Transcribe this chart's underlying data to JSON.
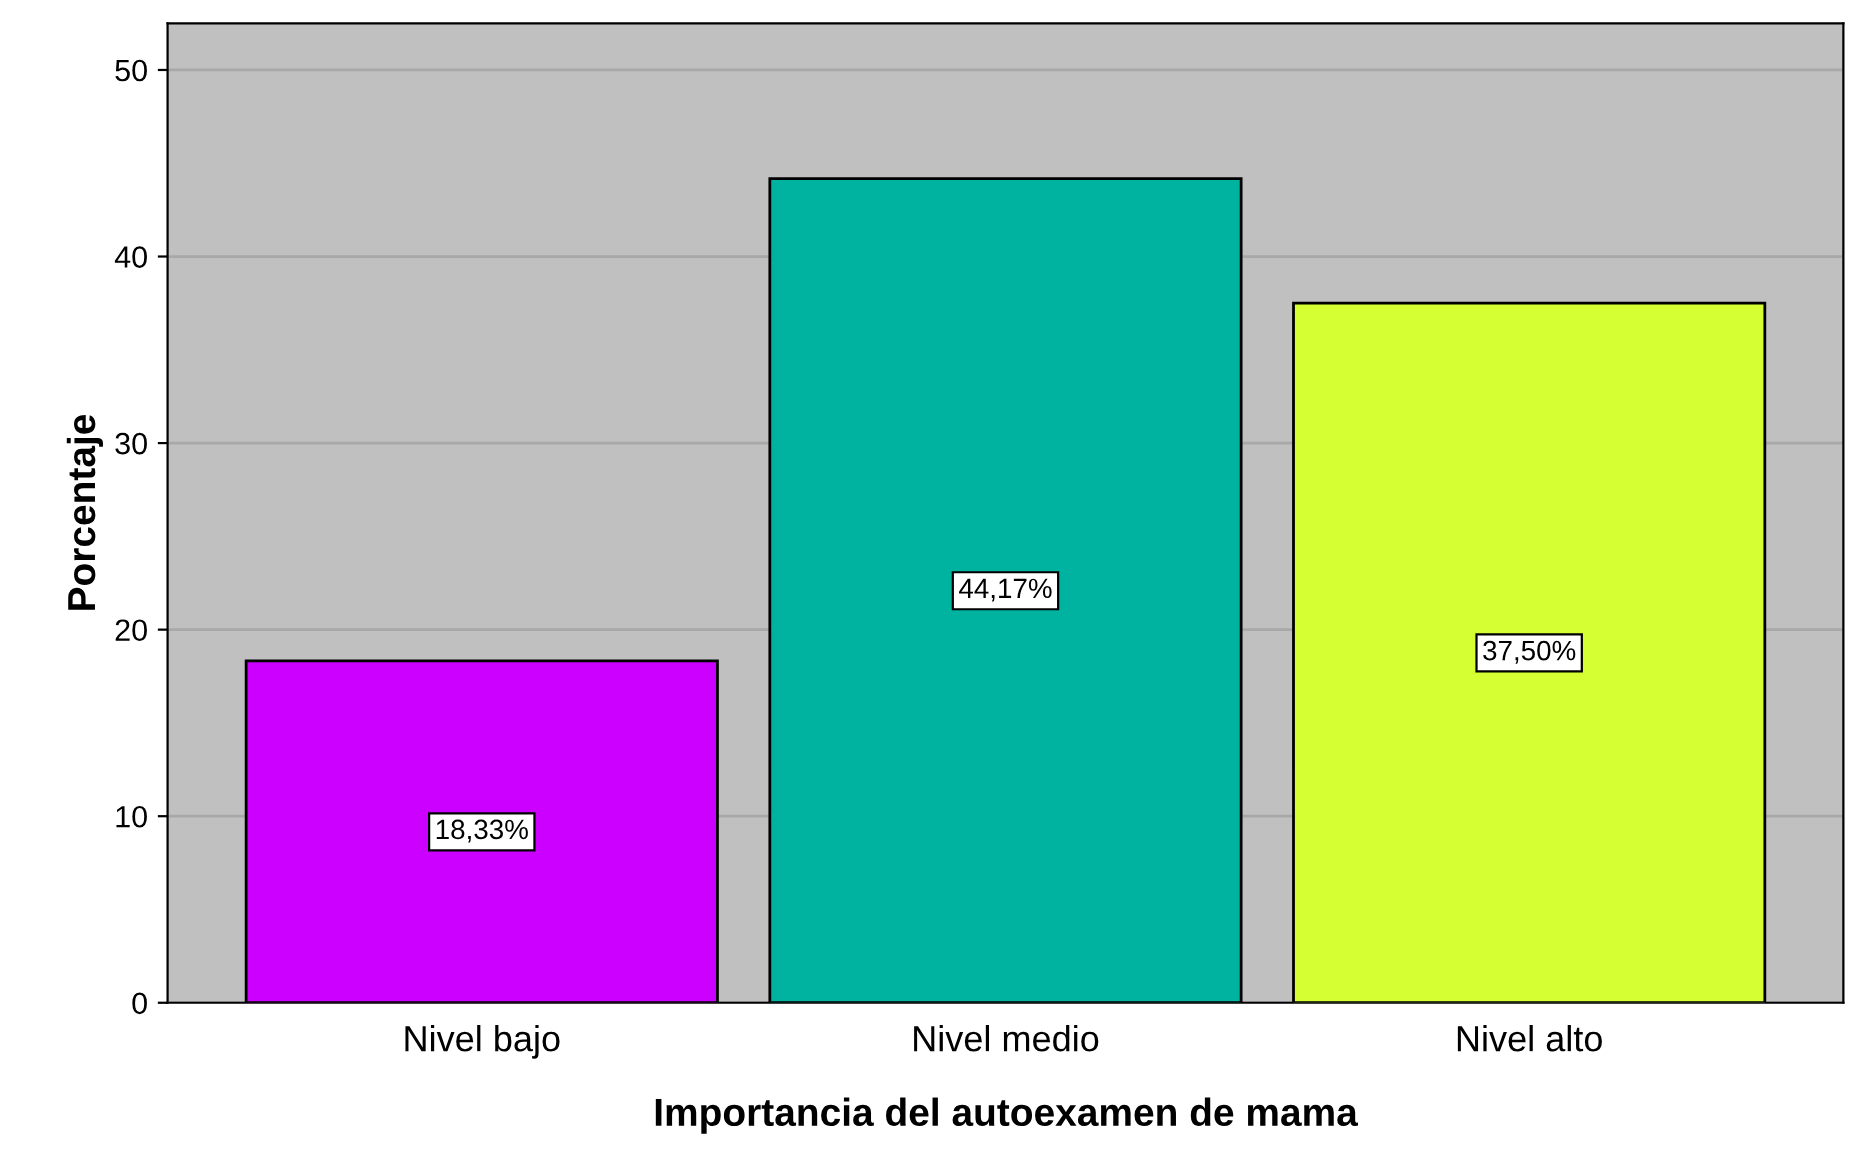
{
  "chart_data": {
    "type": "bar",
    "xlabel": "Importancia del autoexamen de mama",
    "ylabel": "Porcentaje",
    "categories": [
      "Nivel bajo",
      "Nivel medio",
      "Nivel alto"
    ],
    "values": [
      18.33,
      44.17,
      37.5
    ],
    "colors": [
      "#cc00ff",
      "#00b3a0",
      "#d6ff33"
    ],
    "value_labels": [
      "18,33%",
      "44,17%",
      "37,50%"
    ],
    "ylim": [
      0,
      52.5
    ],
    "yticks": [
      0,
      10,
      20,
      30,
      40,
      50
    ],
    "grid": "y"
  }
}
